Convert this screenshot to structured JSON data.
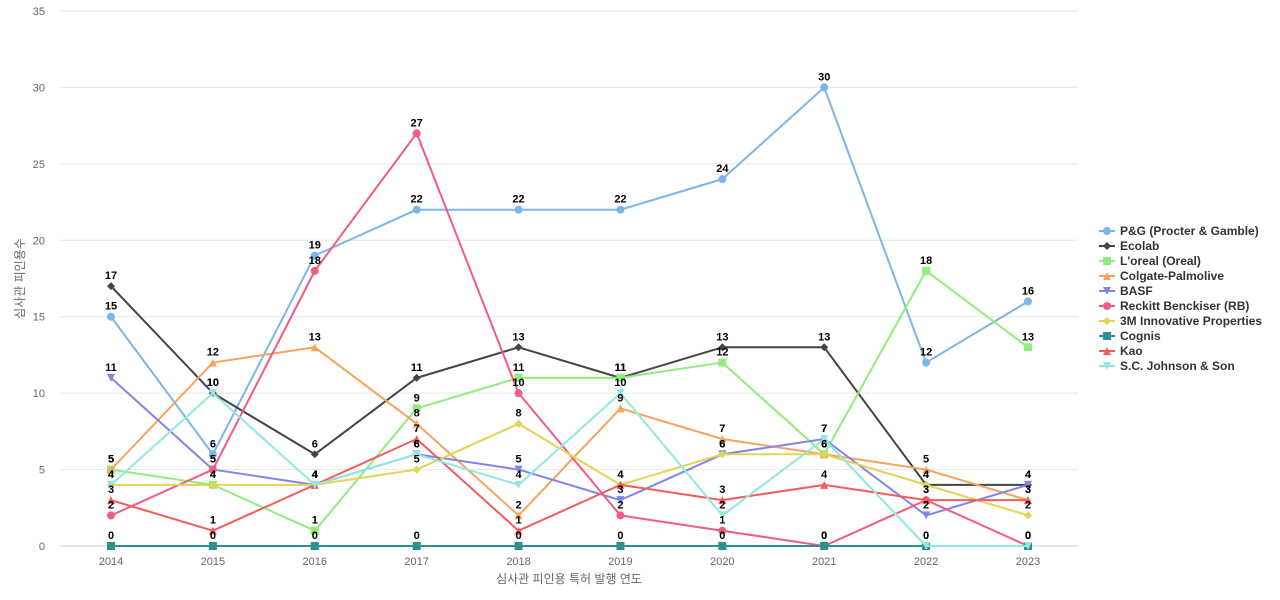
{
  "chart_data": {
    "type": "line",
    "xlabel": "심사관 피인용 특허 발행 연도",
    "ylabel": "심사관 피인용수",
    "ylim": [
      0,
      35
    ],
    "yticks": [
      0,
      5,
      10,
      15,
      20,
      25,
      30,
      35
    ],
    "grid": true,
    "legend_position": "right",
    "x": [
      "2014",
      "2015",
      "2016",
      "2017",
      "2018",
      "2019",
      "2020",
      "2021",
      "2022",
      "2023"
    ],
    "series": [
      {
        "name": "P&G (Procter & Gamble)",
        "color": "#7cb5ec",
        "marker": "circle",
        "values": [
          15,
          6,
          19,
          22,
          22,
          22,
          24,
          30,
          12,
          16
        ]
      },
      {
        "name": "Ecolab",
        "color": "#434348",
        "marker": "diamond",
        "values": [
          17,
          10,
          6,
          11,
          13,
          11,
          13,
          13,
          4,
          4
        ]
      },
      {
        "name": "L'oreal (Oreal)",
        "color": "#90ed7d",
        "marker": "square",
        "values": [
          5,
          4,
          1,
          9,
          11,
          11,
          12,
          6,
          18,
          13
        ]
      },
      {
        "name": "Colgate-Palmolive",
        "color": "#f7a35c",
        "marker": "triangle",
        "values": [
          5,
          12,
          13,
          8,
          2,
          9,
          7,
          6,
          5,
          3
        ]
      },
      {
        "name": "BASF",
        "color": "#8085e9",
        "marker": "triangle-down",
        "values": [
          11,
          5,
          4,
          6,
          5,
          3,
          6,
          7,
          2,
          4
        ]
      },
      {
        "name": "Reckitt Benckiser (RB)",
        "color": "#f15c80",
        "marker": "circle",
        "values": [
          2,
          5,
          18,
          27,
          10,
          2,
          1,
          0,
          3,
          0
        ]
      },
      {
        "name": "3M Innovative Properties",
        "color": "#e4d354",
        "marker": "diamond",
        "values": [
          4,
          4,
          4,
          5,
          8,
          4,
          6,
          6,
          4,
          2
        ]
      },
      {
        "name": "Cognis",
        "color": "#2b908f",
        "marker": "square",
        "values": [
          0,
          0,
          0,
          0,
          0,
          0,
          0,
          0,
          0,
          0
        ]
      },
      {
        "name": "Kao",
        "color": "#f45b5b",
        "marker": "triangle",
        "values": [
          3,
          1,
          4,
          7,
          1,
          4,
          3,
          4,
          3,
          3
        ]
      },
      {
        "name": "S.C. Johnson & Son",
        "color": "#91e8e1",
        "marker": "triangle-down",
        "values": [
          4,
          10,
          4,
          6,
          4,
          10,
          2,
          7,
          0,
          0
        ]
      }
    ]
  }
}
